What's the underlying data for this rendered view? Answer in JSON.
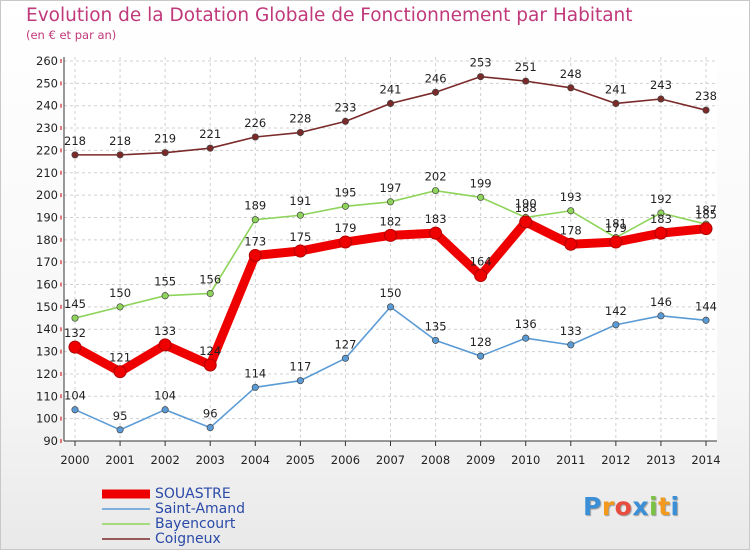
{
  "title": "Evolution de la Dotation Globale de Fonctionnement par Habitant",
  "subtitle": "(en € et par an)",
  "chart_data": {
    "type": "line",
    "x": [
      "2000",
      "2001",
      "2002",
      "2003",
      "2004",
      "2005",
      "2006",
      "2007",
      "2008",
      "2009",
      "2010",
      "2011",
      "2012",
      "2013",
      "2014"
    ],
    "ylim": [
      90,
      260
    ],
    "yticks": [
      90,
      100,
      110,
      120,
      130,
      140,
      150,
      160,
      170,
      180,
      190,
      200,
      210,
      220,
      230,
      240,
      250,
      260
    ],
    "grid": true,
    "legend_position": "bottom-left",
    "series": [
      {
        "name": "SOUASTRE",
        "color": "#ee0000",
        "values": [
          132,
          121,
          133,
          124,
          173,
          175,
          179,
          182,
          183,
          164,
          188,
          178,
          179,
          183,
          185
        ]
      },
      {
        "name": "Saint-Amand",
        "color": "#5b9bd5",
        "values": [
          104,
          95,
          104,
          96,
          114,
          117,
          127,
          150,
          135,
          128,
          136,
          133,
          142,
          146,
          144
        ]
      },
      {
        "name": "Bayencourt",
        "color": "#8ed45a",
        "values": [
          145,
          150,
          155,
          156,
          189,
          191,
          195,
          197,
          202,
          199,
          190,
          193,
          181,
          192,
          187
        ]
      },
      {
        "name": "Coigneux",
        "color": "#7b2a2a",
        "values": [
          218,
          218,
          219,
          221,
          226,
          228,
          233,
          241,
          246,
          253,
          251,
          248,
          241,
          243,
          238
        ]
      }
    ]
  },
  "logo": {
    "text": "Proxiti",
    "letters": [
      "P",
      "r",
      "o",
      "x",
      "i",
      "t",
      "i"
    ],
    "colors": [
      "#3a8fd6",
      "#f39a1d",
      "#e84c3d",
      "#3a8fd6",
      "#7cc242",
      "#f39a1d",
      "#3a8fd6"
    ]
  }
}
